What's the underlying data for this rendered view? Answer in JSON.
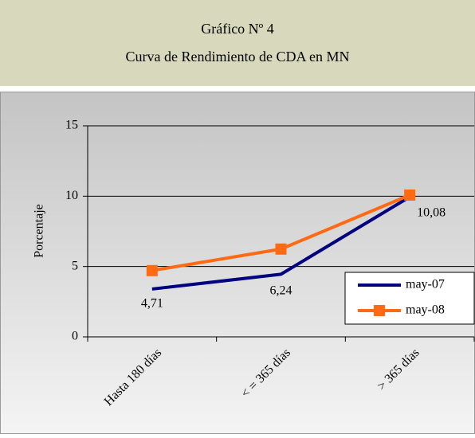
{
  "chart_data": {
    "type": "line",
    "title": "Gráfico Nº 4",
    "subtitle": "Curva de Rendimiento de CDA en MN",
    "y_label": "Porcentaje",
    "categories": [
      "Hasta 180 días",
      "< = 365 días",
      "> 365 días"
    ],
    "series": [
      {
        "name": "may-07",
        "color": "#000080",
        "values": [
          3.4,
          4.45,
          9.95
        ]
      },
      {
        "name": "may-08",
        "color": "#ff6a13",
        "values": [
          4.71,
          6.24,
          10.08
        ],
        "value_labels": [
          "4,71",
          "6,24",
          "10,08"
        ],
        "marker": "square"
      }
    ],
    "ylim": [
      0,
      15
    ],
    "yticks": [
      0,
      5,
      10,
      15
    ],
    "grid": true,
    "legend": "lower right"
  }
}
